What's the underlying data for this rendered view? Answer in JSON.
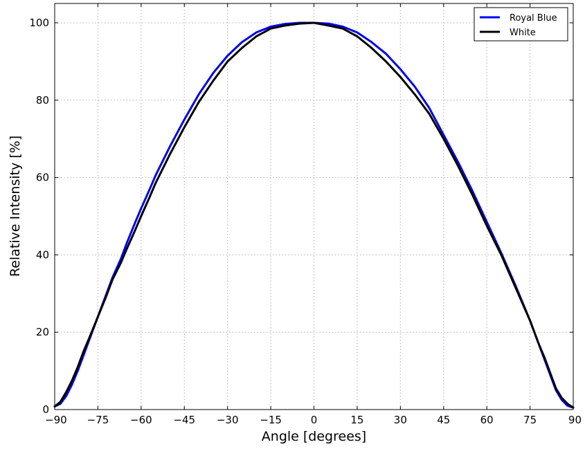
{
  "chart_data": {
    "type": "line",
    "title": "",
    "xlabel": "Angle [degrees]",
    "ylabel": "Relative Intensity [%]",
    "xlim": [
      -90,
      90
    ],
    "ylim": [
      0,
      105
    ],
    "xticks": [
      -90,
      -75,
      -60,
      -45,
      -30,
      -15,
      0,
      15,
      30,
      45,
      60,
      75,
      90
    ],
    "xtick_labels": [
      "−90",
      "−75",
      "−60",
      "−45",
      "−30",
      "−15",
      "0",
      "15",
      "30",
      "45",
      "60",
      "75",
      "90"
    ],
    "yticks": [
      0,
      20,
      40,
      60,
      80,
      100
    ],
    "ytick_labels": [
      "0",
      "20",
      "40",
      "60",
      "80",
      "100"
    ],
    "grid": true,
    "legend_position": "top-right",
    "series": [
      {
        "name": "Royal Blue",
        "color": "#0000ee",
        "x": [
          -90,
          -88,
          -86,
          -84,
          -82,
          -80,
          -78,
          -75,
          -72,
          -70,
          -67,
          -65,
          -62,
          -60,
          -57,
          -55,
          -52,
          -50,
          -45,
          -40,
          -35,
          -30,
          -25,
          -20,
          -15,
          -10,
          -5,
          0,
          5,
          10,
          15,
          20,
          25,
          30,
          35,
          40,
          45,
          50,
          55,
          60,
          65,
          70,
          75,
          78,
          80,
          82,
          84,
          86,
          88,
          90
        ],
        "y": [
          0.8,
          1.5,
          3.5,
          6.5,
          10.0,
          14.0,
          18.0,
          24.0,
          30.0,
          34.0,
          39.0,
          43.0,
          48.5,
          52.0,
          57.0,
          60.5,
          65.0,
          68.0,
          75.0,
          81.5,
          87.0,
          91.5,
          95.0,
          97.5,
          99.0,
          99.7,
          100.0,
          100.0,
          99.8,
          99.0,
          97.5,
          95.0,
          92.0,
          88.0,
          83.5,
          78.0,
          71.0,
          64.0,
          56.5,
          48.5,
          40.5,
          32.0,
          23.0,
          17.0,
          13.0,
          9.0,
          5.0,
          2.5,
          1.0,
          0.5
        ]
      },
      {
        "name": "White",
        "color": "#000000",
        "x": [
          -90,
          -88,
          -86,
          -84,
          -82,
          -80,
          -78,
          -75,
          -72,
          -70,
          -67,
          -65,
          -62,
          -60,
          -57,
          -55,
          -52,
          -50,
          -45,
          -40,
          -35,
          -30,
          -25,
          -20,
          -15,
          -10,
          -5,
          0,
          5,
          10,
          15,
          20,
          25,
          30,
          35,
          40,
          45,
          50,
          55,
          60,
          65,
          70,
          75,
          78,
          80,
          82,
          84,
          86,
          88,
          90
        ],
        "y": [
          0.8,
          2.0,
          4.5,
          7.5,
          11.0,
          15.0,
          18.5,
          24.0,
          29.5,
          33.5,
          38.0,
          41.5,
          46.5,
          50.0,
          55.0,
          58.5,
          63.0,
          66.0,
          73.0,
          79.5,
          85.0,
          90.0,
          93.5,
          96.5,
          98.5,
          99.3,
          99.8,
          100.0,
          99.3,
          98.5,
          96.5,
          93.5,
          90.0,
          86.0,
          81.5,
          76.5,
          70.0,
          63.0,
          55.5,
          47.5,
          40.0,
          31.5,
          23.0,
          17.0,
          13.5,
          9.5,
          5.5,
          3.0,
          1.5,
          0.5
        ]
      }
    ]
  }
}
